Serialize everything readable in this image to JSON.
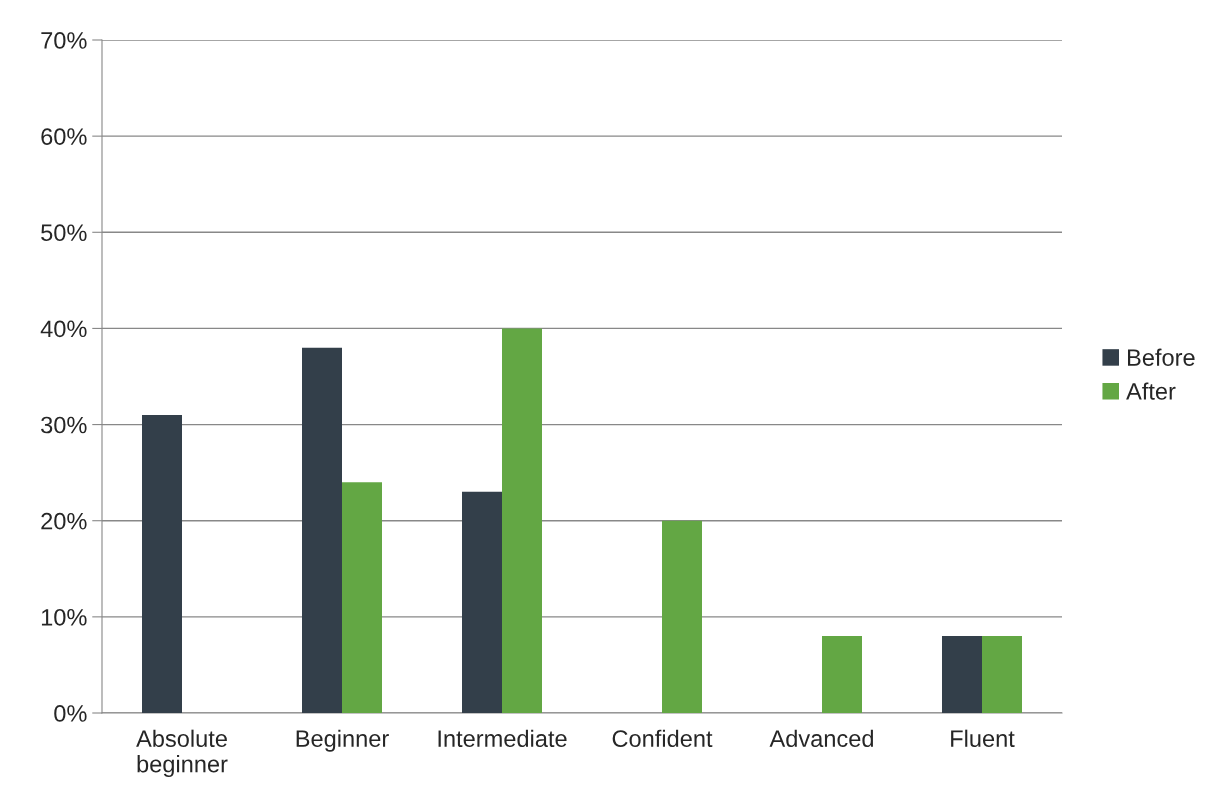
{
  "chart_data": {
    "type": "bar",
    "categories": [
      "Absolute\nbeginner",
      "Beginner",
      "Intermediate",
      "Confident",
      "Advanced",
      "Fluent"
    ],
    "series": [
      {
        "name": "Before",
        "color": "#333f4a",
        "values": [
          31,
          38,
          23,
          0,
          0,
          8
        ]
      },
      {
        "name": "After",
        "color": "#63a744",
        "values": [
          0,
          24,
          40,
          20,
          8,
          8
        ]
      }
    ],
    "ylim": [
      0,
      70
    ],
    "yticks": [
      {
        "value": 0,
        "label": "0%"
      },
      {
        "value": 10,
        "label": "10%"
      },
      {
        "value": 20,
        "label": "20%"
      },
      {
        "value": 30,
        "label": "30%"
      },
      {
        "value": 40,
        "label": "40%"
      },
      {
        "value": 50,
        "label": "50%"
      },
      {
        "value": 60,
        "label": "60%"
      },
      {
        "value": 70,
        "label": "70%"
      }
    ],
    "grid": "y",
    "legend": "right"
  }
}
